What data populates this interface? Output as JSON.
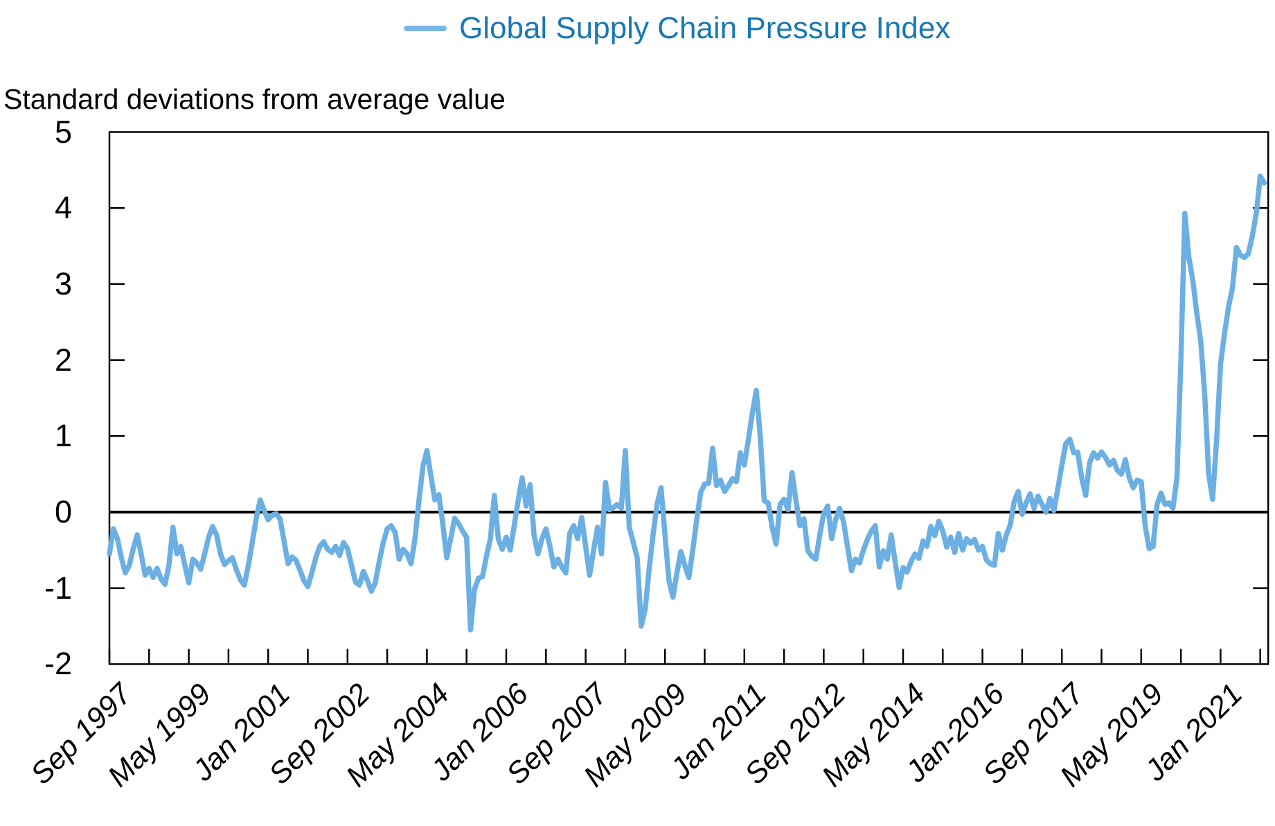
{
  "title": "Standard deviations from average value",
  "legend": {
    "label": "Global Supply Chain Pressure Index"
  },
  "colors": {
    "line": "#6CAFE3",
    "legend_swatch": "#7AB6E8",
    "legend_text": "#1878B4",
    "axis": "#000000",
    "zero_line": "#000000",
    "background": "#FFFFFF"
  },
  "chart_data": {
    "type": "line",
    "title": "Global Supply Chain Pressure Index",
    "subtitle": "Standard deviations from average value",
    "xlabel": "",
    "ylabel": "Standard deviations from average value",
    "frequency": "monthly",
    "x_start": "1997-09",
    "x_end": "2021-12",
    "ylim": [
      -2,
      5
    ],
    "grid": false,
    "zero_line": true,
    "legend_position": "top-center",
    "y_ticks": [
      5,
      4,
      3,
      2,
      1,
      0,
      -1,
      -2
    ],
    "x_tick_labels": [
      "Sep 1997",
      "May 1999",
      "Jan 2001",
      "Sep 2002",
      "May 2004",
      "Jan 2006",
      "Sep 2007",
      "May 2009",
      "Jan 2011",
      "Sep 2012",
      "May 2014",
      "Jan-2016",
      "Sep 2017",
      "May 2019",
      "Jan 2021"
    ],
    "x_minor_tick_every_months": 10,
    "x_label_every_months": 20,
    "series": [
      {
        "name": "Global Supply Chain Pressure Index",
        "start": "1997-09",
        "values": [
          -0.55,
          -0.22,
          -0.35,
          -0.6,
          -0.8,
          -0.7,
          -0.48,
          -0.3,
          -0.55,
          -0.83,
          -0.74,
          -0.86,
          -0.74,
          -0.88,
          -0.95,
          -0.7,
          -0.2,
          -0.55,
          -0.45,
          -0.7,
          -0.93,
          -0.62,
          -0.67,
          -0.75,
          -0.55,
          -0.33,
          -0.19,
          -0.3,
          -0.55,
          -0.69,
          -0.64,
          -0.6,
          -0.76,
          -0.89,
          -0.96,
          -0.7,
          -0.4,
          -0.08,
          0.16,
          0.02,
          -0.1,
          -0.04,
          -0.02,
          -0.09,
          -0.38,
          -0.68,
          -0.59,
          -0.63,
          -0.76,
          -0.9,
          -0.98,
          -0.8,
          -0.6,
          -0.45,
          -0.39,
          -0.49,
          -0.53,
          -0.45,
          -0.57,
          -0.4,
          -0.48,
          -0.7,
          -0.92,
          -0.96,
          -0.78,
          -0.9,
          -1.04,
          -0.93,
          -0.65,
          -0.4,
          -0.22,
          -0.18,
          -0.27,
          -0.62,
          -0.49,
          -0.55,
          -0.68,
          -0.35,
          0.15,
          0.6,
          0.81,
          0.48,
          0.16,
          0.23,
          -0.15,
          -0.6,
          -0.35,
          -0.08,
          -0.15,
          -0.25,
          -0.33,
          -1.55,
          -1.01,
          -0.87,
          -0.85,
          -0.58,
          -0.35,
          0.22,
          -0.35,
          -0.49,
          -0.33,
          -0.5,
          -0.18,
          0.15,
          0.45,
          0.08,
          0.36,
          -0.3,
          -0.55,
          -0.35,
          -0.22,
          -0.45,
          -0.72,
          -0.62,
          -0.72,
          -0.8,
          -0.28,
          -0.18,
          -0.35,
          -0.07,
          -0.45,
          -0.83,
          -0.5,
          -0.2,
          -0.55,
          0.39,
          0.03,
          0.06,
          0.1,
          0.05,
          0.81,
          -0.2,
          -0.4,
          -0.6,
          -1.5,
          -1.28,
          -0.75,
          -0.3,
          0.1,
          0.32,
          -0.3,
          -0.9,
          -1.12,
          -0.8,
          -0.52,
          -0.7,
          -0.86,
          -0.5,
          -0.1,
          0.26,
          0.37,
          0.38,
          0.84,
          0.35,
          0.42,
          0.27,
          0.35,
          0.44,
          0.4,
          0.78,
          0.62,
          0.95,
          1.3,
          1.6,
          1.0,
          0.15,
          0.12,
          -0.2,
          -0.42,
          0.1,
          0.17,
          0.03,
          0.52,
          0.15,
          -0.18,
          -0.09,
          -0.51,
          -0.58,
          -0.62,
          -0.3,
          -0.02,
          0.08,
          -0.35,
          -0.1,
          0.05,
          -0.13,
          -0.46,
          -0.77,
          -0.62,
          -0.67,
          -0.5,
          -0.36,
          -0.25,
          -0.18,
          -0.72,
          -0.51,
          -0.62,
          -0.3,
          -0.65,
          -0.99,
          -0.73,
          -0.79,
          -0.65,
          -0.55,
          -0.61,
          -0.38,
          -0.45,
          -0.19,
          -0.31,
          -0.12,
          -0.25,
          -0.46,
          -0.33,
          -0.53,
          -0.28,
          -0.5,
          -0.35,
          -0.41,
          -0.36,
          -0.5,
          -0.45,
          -0.63,
          -0.68,
          -0.7,
          -0.28,
          -0.5,
          -0.3,
          -0.17,
          0.14,
          0.27,
          -0.03,
          0.12,
          0.24,
          0.05,
          0.21,
          0.1,
          0.0,
          0.18,
          0.02,
          0.31,
          0.62,
          0.9,
          0.96,
          0.78,
          0.79,
          0.45,
          0.22,
          0.65,
          0.78,
          0.71,
          0.79,
          0.72,
          0.62,
          0.68,
          0.55,
          0.5,
          0.69,
          0.45,
          0.32,
          0.42,
          0.4,
          -0.18,
          -0.48,
          -0.45,
          0.1,
          0.25,
          0.1,
          0.12,
          0.05,
          0.45,
          2.0,
          3.93,
          3.35,
          3.05,
          2.62,
          2.25,
          1.55,
          0.5,
          0.17,
          0.95,
          1.95,
          2.35,
          2.7,
          2.95,
          3.48,
          3.38,
          3.35,
          3.4,
          3.63,
          3.93,
          4.42,
          4.33
        ]
      }
    ]
  }
}
